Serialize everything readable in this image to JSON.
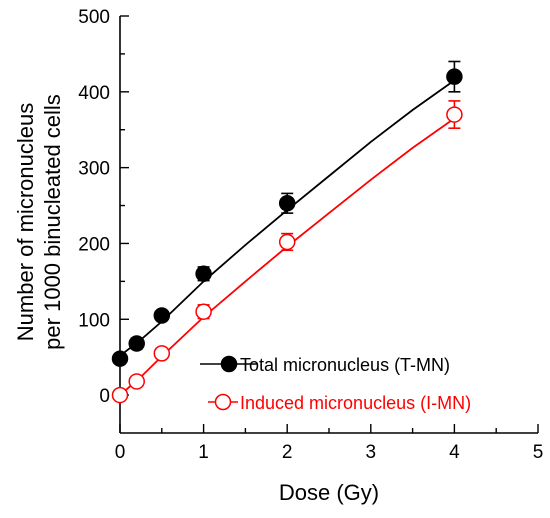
{
  "chart_data": {
    "type": "scatter",
    "xlabel": "Dose (Gy)",
    "ylabel_lines": [
      "Number of micronucleus",
      "per 1000 binucleated cells"
    ],
    "xlim": [
      0,
      5
    ],
    "ylim": [
      -50,
      500
    ],
    "x_ticks": [
      0,
      1,
      2,
      3,
      4,
      5
    ],
    "y_ticks": [
      0,
      100,
      200,
      300,
      400,
      500
    ],
    "x_tick_labels": [
      "0",
      "1",
      "2",
      "3",
      "4",
      "5"
    ],
    "y_tick_labels": [
      "0",
      "100",
      "200",
      "300",
      "400",
      "500"
    ],
    "grid": false,
    "legend_position": "bottom-right",
    "series": [
      {
        "name": "Total micronucleus (T-MN)",
        "color": "#000000",
        "marker": "filled-circle",
        "points": [
          {
            "x": 0,
            "y": 48,
            "err": 5
          },
          {
            "x": 0.2,
            "y": 68,
            "err": 7
          },
          {
            "x": 0.5,
            "y": 105,
            "err": 6
          },
          {
            "x": 1,
            "y": 160,
            "err": 9
          },
          {
            "x": 2,
            "y": 253,
            "err": 13
          },
          {
            "x": 4,
            "y": 420,
            "err": 20
          }
        ],
        "fit": [
          [
            0,
            52
          ],
          [
            0.25,
            73
          ],
          [
            0.5,
            97
          ],
          [
            1,
            150
          ],
          [
            1.5,
            198
          ],
          [
            2,
            244
          ],
          [
            2.5,
            289
          ],
          [
            3,
            334
          ],
          [
            3.5,
            376
          ],
          [
            4,
            415
          ]
        ]
      },
      {
        "name": "Induced micronucleus (I-MN)",
        "color": "#ff0000",
        "marker": "open-circle",
        "points": [
          {
            "x": 0,
            "y": 0,
            "err": 3
          },
          {
            "x": 0.2,
            "y": 18,
            "err": 5
          },
          {
            "x": 0.5,
            "y": 55,
            "err": 5
          },
          {
            "x": 1,
            "y": 110,
            "err": 9
          },
          {
            "x": 2,
            "y": 202,
            "err": 11
          },
          {
            "x": 4,
            "y": 370,
            "err": 18
          }
        ],
        "fit": [
          [
            0,
            0
          ],
          [
            0.25,
            24
          ],
          [
            0.5,
            51
          ],
          [
            1,
            103
          ],
          [
            1.5,
            150
          ],
          [
            2,
            196
          ],
          [
            2.5,
            240
          ],
          [
            3,
            284
          ],
          [
            3.5,
            326
          ],
          [
            4,
            365
          ]
        ]
      }
    ]
  }
}
